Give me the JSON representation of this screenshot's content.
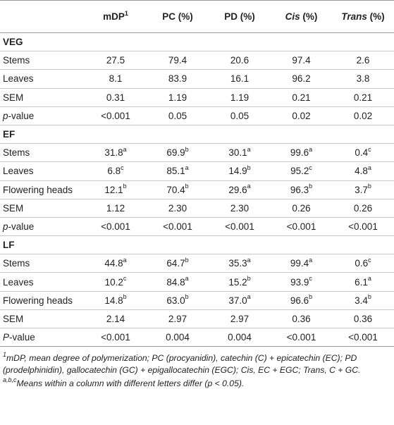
{
  "headers": {
    "row_label": "",
    "columns": [
      {
        "text": "mDP",
        "sup": "1",
        "italic": false
      },
      {
        "text": "PC (%)",
        "sup": "",
        "italic": false
      },
      {
        "text": "PD (%)",
        "sup": "",
        "italic": false
      },
      {
        "text": "Cis",
        "suffix": " (%)",
        "sup": "",
        "italic": true
      },
      {
        "text": "Trans",
        "suffix": " (%)",
        "sup": "",
        "italic": true
      }
    ]
  },
  "sections": [
    {
      "title": "VEG",
      "rows": [
        {
          "label": "Stems",
          "cells": [
            {
              "v": "27.5",
              "s": ""
            },
            {
              "v": "79.4",
              "s": ""
            },
            {
              "v": "20.6",
              "s": ""
            },
            {
              "v": "97.4",
              "s": ""
            },
            {
              "v": "2.6",
              "s": ""
            }
          ]
        },
        {
          "label": "Leaves",
          "cells": [
            {
              "v": "8.1",
              "s": ""
            },
            {
              "v": "83.9",
              "s": ""
            },
            {
              "v": "16.1",
              "s": ""
            },
            {
              "v": "96.2",
              "s": ""
            },
            {
              "v": "3.8",
              "s": ""
            }
          ]
        },
        {
          "label": "SEM",
          "cells": [
            {
              "v": "0.31",
              "s": ""
            },
            {
              "v": "1.19",
              "s": ""
            },
            {
              "v": "1.19",
              "s": ""
            },
            {
              "v": "0.21",
              "s": ""
            },
            {
              "v": "0.21",
              "s": ""
            }
          ]
        },
        {
          "label_italic": "p",
          "label": "-value",
          "cells": [
            {
              "v": "<0.001",
              "s": ""
            },
            {
              "v": "0.05",
              "s": ""
            },
            {
              "v": "0.05",
              "s": ""
            },
            {
              "v": "0.02",
              "s": ""
            },
            {
              "v": "0.02",
              "s": ""
            }
          ]
        }
      ]
    },
    {
      "title": "EF",
      "rows": [
        {
          "label": "Stems",
          "cells": [
            {
              "v": "31.8",
              "s": "a"
            },
            {
              "v": "69.9",
              "s": "b"
            },
            {
              "v": "30.1",
              "s": "a"
            },
            {
              "v": "99.6",
              "s": "a"
            },
            {
              "v": "0.4",
              "s": "c"
            }
          ]
        },
        {
          "label": "Leaves",
          "cells": [
            {
              "v": "6.8",
              "s": "c"
            },
            {
              "v": "85.1",
              "s": "a"
            },
            {
              "v": "14.9",
              "s": "b"
            },
            {
              "v": "95.2",
              "s": "c"
            },
            {
              "v": "4.8",
              "s": "a"
            }
          ]
        },
        {
          "label": "Flowering heads",
          "cells": [
            {
              "v": "12.1",
              "s": "b"
            },
            {
              "v": "70.4",
              "s": "b"
            },
            {
              "v": "29.6",
              "s": "a"
            },
            {
              "v": "96.3",
              "s": "b"
            },
            {
              "v": "3.7",
              "s": "b"
            }
          ]
        },
        {
          "label": "SEM",
          "cells": [
            {
              "v": "1.12",
              "s": ""
            },
            {
              "v": "2.30",
              "s": ""
            },
            {
              "v": "2.30",
              "s": ""
            },
            {
              "v": "0.26",
              "s": ""
            },
            {
              "v": "0.26",
              "s": ""
            }
          ]
        },
        {
          "label_italic": "p",
          "label": "-value",
          "cells": [
            {
              "v": "<0.001",
              "s": ""
            },
            {
              "v": "<0.001",
              "s": ""
            },
            {
              "v": "<0.001",
              "s": ""
            },
            {
              "v": "<0.001",
              "s": ""
            },
            {
              "v": "<0.001",
              "s": ""
            }
          ]
        }
      ]
    },
    {
      "title": "LF",
      "rows": [
        {
          "label": "Stems",
          "cells": [
            {
              "v": "44.8",
              "s": "a"
            },
            {
              "v": "64.7",
              "s": "b"
            },
            {
              "v": "35.3",
              "s": "a"
            },
            {
              "v": "99.4",
              "s": "a"
            },
            {
              "v": "0.6",
              "s": "c"
            }
          ]
        },
        {
          "label": "Leaves",
          "cells": [
            {
              "v": "10.2",
              "s": "c"
            },
            {
              "v": "84.8",
              "s": "a"
            },
            {
              "v": "15.2",
              "s": "b"
            },
            {
              "v": "93.9",
              "s": "c"
            },
            {
              "v": "6.1",
              "s": "a"
            }
          ]
        },
        {
          "label": "Flowering heads",
          "cells": [
            {
              "v": "14.8",
              "s": "b"
            },
            {
              "v": "63.0",
              "s": "b"
            },
            {
              "v": "37.0",
              "s": "a"
            },
            {
              "v": "96.6",
              "s": "b"
            },
            {
              "v": "3.4",
              "s": "b"
            }
          ]
        },
        {
          "label": "SEM",
          "cells": [
            {
              "v": "2.14",
              "s": ""
            },
            {
              "v": "2.97",
              "s": ""
            },
            {
              "v": "2.97",
              "s": ""
            },
            {
              "v": "0.36",
              "s": ""
            },
            {
              "v": "0.36",
              "s": ""
            }
          ]
        },
        {
          "label_italic": "P",
          "label": "-value",
          "cells": [
            {
              "v": "<0.001",
              "s": ""
            },
            {
              "v": "0.004",
              "s": ""
            },
            {
              "v": "0.004",
              "s": ""
            },
            {
              "v": "<0.001",
              "s": ""
            },
            {
              "v": "<0.001",
              "s": ""
            }
          ]
        }
      ]
    }
  ],
  "footnotes": [
    {
      "sup": "1",
      "text": "mDP, mean degree of polymerization; PC (procyanidin), catechin (C) + epicatechin (EC); PD (prodelphinidin), gallocatechin (GC) + epigallocatechin (EGC); Cis, EC + EGC; Trans, C + GC."
    },
    {
      "sup": "a,b,c",
      "text": "Means within a column with different letters differ (p < 0.05)."
    }
  ]
}
